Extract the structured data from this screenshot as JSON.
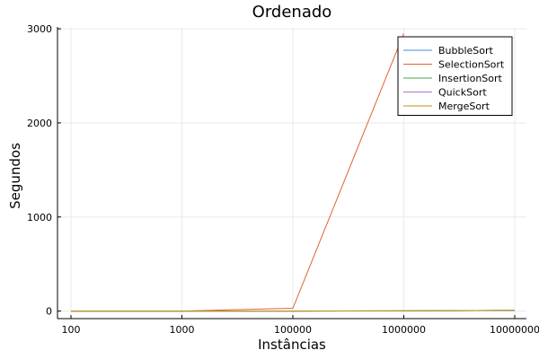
{
  "chart_data": {
    "type": "line",
    "title": "Ordenado",
    "xlabel": "Instâncias",
    "ylabel": "Segundos",
    "categories": [
      "100",
      "1000",
      "100000",
      "1000000",
      "10000000"
    ],
    "yticks": [
      0,
      1000,
      2000,
      3000
    ],
    "ylim": [
      -80,
      3020
    ],
    "grid": true,
    "legend_position": "top-right",
    "series": [
      {
        "name": "BubbleSort",
        "color": "#3a8fdd",
        "values": [
          0,
          0,
          0,
          2,
          8
        ]
      },
      {
        "name": "SelectionSort",
        "color": "#e2622f",
        "values": [
          0,
          0,
          30,
          2950,
          null
        ]
      },
      {
        "name": "InsertionSort",
        "color": "#3fa54a",
        "values": [
          0,
          0,
          0,
          2,
          8
        ]
      },
      {
        "name": "QuickSort",
        "color": "#b070d6",
        "values": [
          0,
          0,
          0,
          2,
          8
        ]
      },
      {
        "name": "MergeSort",
        "color": "#b8930b",
        "values": [
          0,
          0,
          0,
          2,
          8
        ]
      }
    ]
  }
}
